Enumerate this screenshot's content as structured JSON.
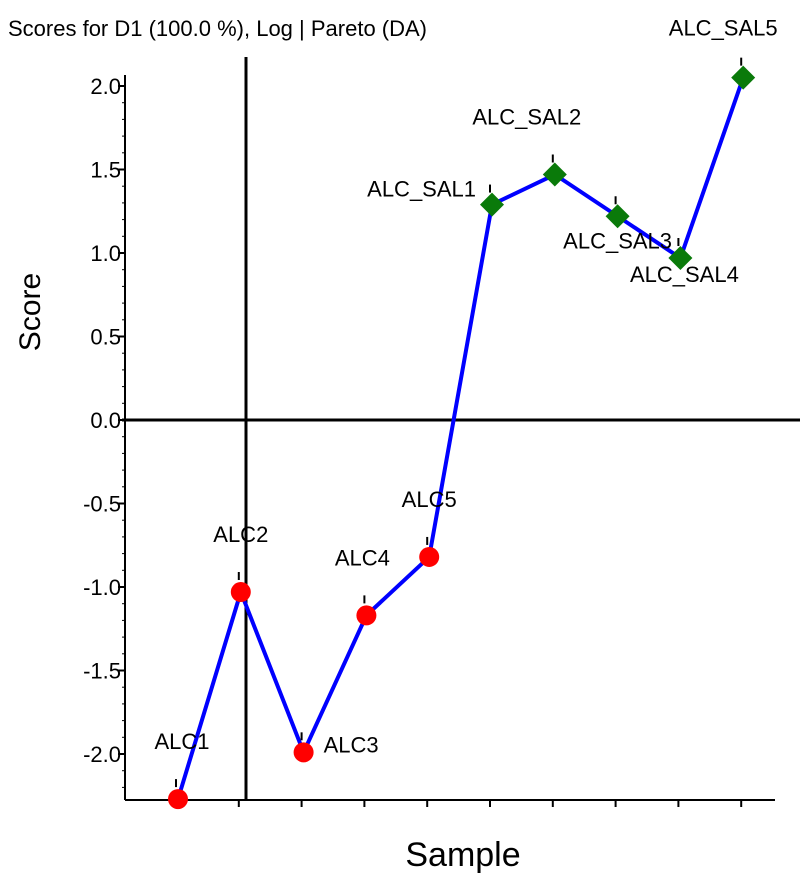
{
  "chart_data": {
    "type": "line",
    "title": "Scores for D1 (100.0 %), Log | Pareto (DA)",
    "xlabel": "Sample",
    "ylabel": "Score",
    "ylim": [
      -2.25,
      2.1
    ],
    "yticks": [
      "2.0",
      "1.5",
      "1.0",
      "0.5",
      "0.0",
      "-0.5",
      "-1.0",
      "-1.5",
      "-2.0"
    ],
    "x": [
      1,
      2,
      3,
      4,
      5,
      6,
      7,
      8,
      9,
      10
    ],
    "series": [
      {
        "line_color": "#0000ff",
        "points": [
          {
            "label": "ALC1",
            "value": -2.27,
            "group": "ALC",
            "marker": "circle",
            "color": "#ff0000"
          },
          {
            "label": "ALC2",
            "value": -1.03,
            "group": "ALC",
            "marker": "circle",
            "color": "#ff0000"
          },
          {
            "label": "ALC3",
            "value": -1.99,
            "group": "ALC",
            "marker": "circle",
            "color": "#ff0000"
          },
          {
            "label": "ALC4",
            "value": -1.17,
            "group": "ALC",
            "marker": "circle",
            "color": "#ff0000"
          },
          {
            "label": "ALC5",
            "value": -0.82,
            "group": "ALC",
            "marker": "circle",
            "color": "#ff0000"
          },
          {
            "label": "ALC_SAL1",
            "value": 1.29,
            "group": "ALC_SAL",
            "marker": "diamond",
            "color": "#0a7a0a"
          },
          {
            "label": "ALC_SAL2",
            "value": 1.47,
            "group": "ALC_SAL",
            "marker": "diamond",
            "color": "#0a7a0a"
          },
          {
            "label": "ALC_SAL3",
            "value": 1.22,
            "group": "ALC_SAL",
            "marker": "diamond",
            "color": "#0a7a0a"
          },
          {
            "label": "ALC_SAL4",
            "value": 0.97,
            "group": "ALC_SAL",
            "marker": "diamond",
            "color": "#0a7a0a"
          },
          {
            "label": "ALC_SAL5",
            "value": 2.05,
            "group": "ALC_SAL",
            "marker": "diamond",
            "color": "#0a7a0a"
          }
        ]
      }
    ]
  }
}
